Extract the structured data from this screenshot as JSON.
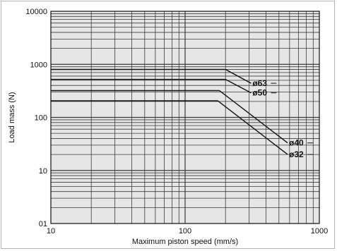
{
  "chart_data": {
    "type": "line",
    "title": "",
    "xlabel": "Maximum piston speed (mm/s)",
    "ylabel": "Load mass (N)",
    "x_scale": "log",
    "y_scale": "log",
    "xlim": [
      10,
      1000
    ],
    "ylim": [
      1,
      10000
    ],
    "x_tick_labels": [
      {
        "value": 10,
        "label": "10"
      },
      {
        "value": 100,
        "label": "100"
      },
      {
        "value": 1000,
        "label": "1000"
      }
    ],
    "y_tick_labels": [
      {
        "value": 1,
        "label": "01"
      },
      {
        "value": 10,
        "label": "10"
      },
      {
        "value": 100,
        "label": "100"
      },
      {
        "value": 1000,
        "label": "1000"
      },
      {
        "value": 10000,
        "label": "10000"
      }
    ],
    "grid": true,
    "background_color": "#e6e6e6",
    "line_color": "#111111",
    "series": [
      {
        "name": "ø63",
        "points": [
          {
            "x": 10,
            "y": 800
          },
          {
            "x": 200,
            "y": 800
          },
          {
            "x": 310,
            "y": 440
          }
        ]
      },
      {
        "name": "ø50",
        "points": [
          {
            "x": 10,
            "y": 520
          },
          {
            "x": 200,
            "y": 520
          },
          {
            "x": 310,
            "y": 290
          }
        ]
      },
      {
        "name": "ø40",
        "points": [
          {
            "x": 10,
            "y": 320
          },
          {
            "x": 180,
            "y": 320
          },
          {
            "x": 580,
            "y": 33
          }
        ]
      },
      {
        "name": "ø32",
        "points": [
          {
            "x": 10,
            "y": 205
          },
          {
            "x": 175,
            "y": 205
          },
          {
            "x": 580,
            "y": 20
          }
        ]
      }
    ]
  }
}
